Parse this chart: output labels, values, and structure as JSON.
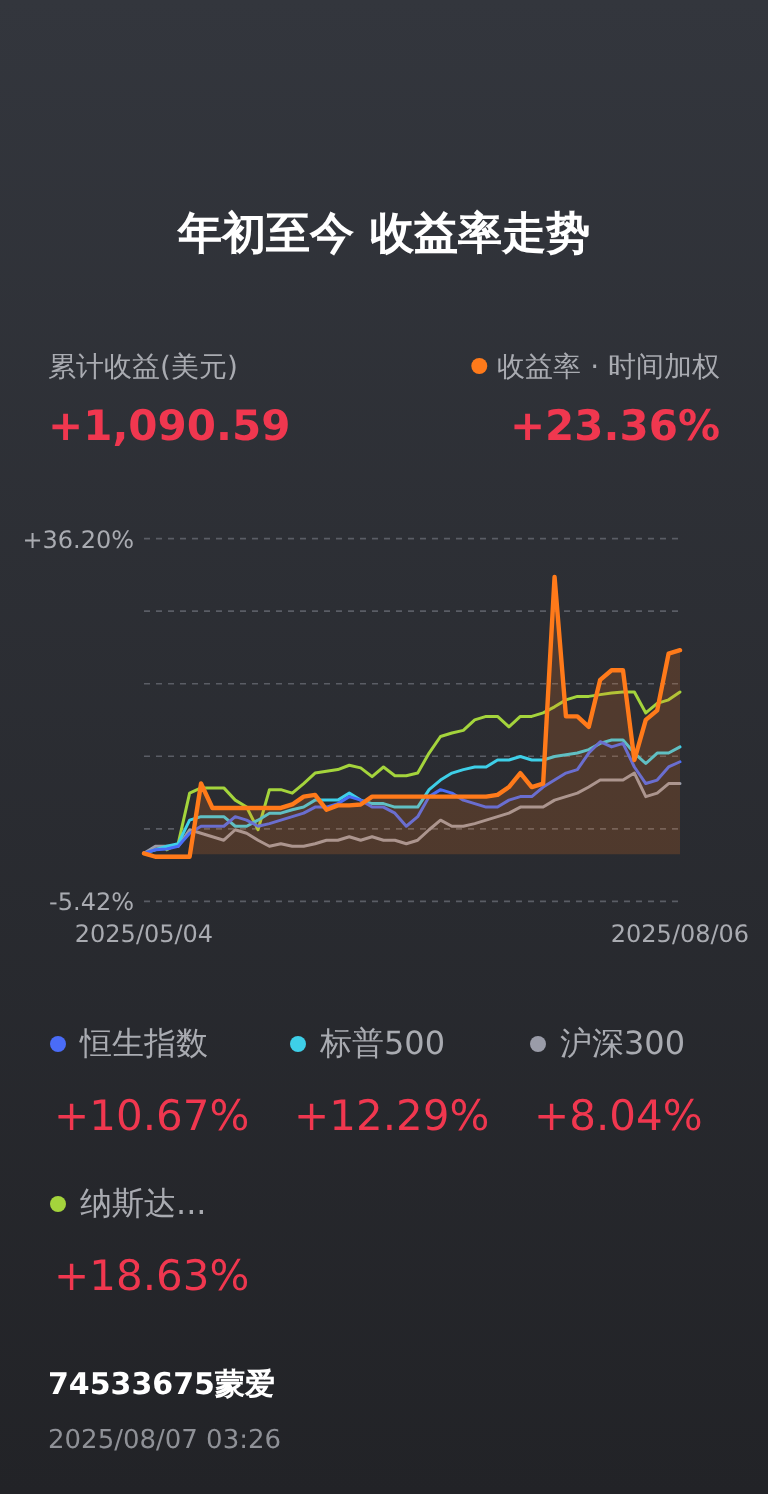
{
  "chart_data": {
    "type": "line",
    "title": "年初至今 收益率走势",
    "annotations": [
      "累计收益(美元)",
      "+1,090.59",
      "+23.36%",
      "+10.67%",
      "+12.29%",
      "+8.04%",
      "+18.63%",
      "74533675蒙爱",
      "2025/08/07 03:26"
    ],
    "x": [
      "2025-05-04",
      "2025-05-06",
      "2025-05-08",
      "2025-05-10",
      "2025-05-12",
      "2025-05-14",
      "2025-05-16",
      "2025-05-18",
      "2025-05-20",
      "2025-05-22",
      "2025-05-24",
      "2025-05-26",
      "2025-05-28",
      "2025-05-30",
      "2025-06-01",
      "2025-06-03",
      "2025-06-05",
      "2025-06-07",
      "2025-06-09",
      "2025-06-11",
      "2025-06-13",
      "2025-06-15",
      "2025-06-17",
      "2025-06-19",
      "2025-06-21",
      "2025-06-23",
      "2025-06-25",
      "2025-06-27",
      "2025-06-29",
      "2025-07-01",
      "2025-07-03",
      "2025-07-05",
      "2025-07-07",
      "2025-07-09",
      "2025-07-11",
      "2025-07-13",
      "2025-07-15",
      "2025-07-17",
      "2025-07-19",
      "2025-07-21",
      "2025-07-23",
      "2025-07-25",
      "2025-07-27",
      "2025-07-29",
      "2025-07-31",
      "2025-08-02",
      "2025-08-04",
      "2025-08-06"
    ],
    "series": [
      {
        "name": "收益率 · 时间加权",
        "type": "area",
        "color": "#ff7a1a",
        "values": [
          0.1,
          -0.3,
          -0.3,
          -0.3,
          -0.3,
          8.1,
          5.3,
          5.3,
          5.3,
          5.3,
          5.3,
          5.3,
          5.3,
          5.7,
          6.6,
          6.8,
          5.1,
          5.6,
          5.6,
          5.7,
          6.6,
          6.6,
          6.6,
          6.6,
          6.6,
          6.6,
          6.6,
          6.6,
          6.6,
          6.6,
          6.6,
          6.8,
          7.7,
          9.3,
          7.7,
          8.1,
          31.8,
          15.8,
          15.8,
          14.6,
          20.0,
          21.1,
          21.1,
          10.8,
          15.4,
          16.5,
          23.0,
          23.4
        ]
      },
      {
        "name": "恒生指数",
        "color": "#4a6cf7",
        "values": [
          0.1,
          0.5,
          0.6,
          0.9,
          2.4,
          3.2,
          3.2,
          3.2,
          4.3,
          3.9,
          3.2,
          3.5,
          3.9,
          4.3,
          4.7,
          5.4,
          5.4,
          5.8,
          6.6,
          6.2,
          5.4,
          5.4,
          4.7,
          3.2,
          4.3,
          6.6,
          7.4,
          7.0,
          6.2,
          5.8,
          5.4,
          5.4,
          6.2,
          6.6,
          6.6,
          7.7,
          8.5,
          9.3,
          9.7,
          11.6,
          12.9,
          12.3,
          12.7,
          10.0,
          8.1,
          8.5,
          10.0,
          10.6
        ]
      },
      {
        "name": "标普500",
        "color": "#3ecfe8",
        "values": [
          0.1,
          0.5,
          0.9,
          1.2,
          3.9,
          4.3,
          4.3,
          4.3,
          3.2,
          3.2,
          3.9,
          4.7,
          4.7,
          5.1,
          5.4,
          6.2,
          6.2,
          6.2,
          7.0,
          6.2,
          5.8,
          5.8,
          5.4,
          5.4,
          5.4,
          7.4,
          8.5,
          9.3,
          9.7,
          10.0,
          10.0,
          10.8,
          10.8,
          11.2,
          10.8,
          10.8,
          11.2,
          11.4,
          11.6,
          12.0,
          12.7,
          13.1,
          13.1,
          11.6,
          10.4,
          11.6,
          11.6,
          12.3
        ]
      },
      {
        "name": "沪深300",
        "color": "#9a9ca8",
        "values": [
          0.1,
          0.9,
          0.9,
          0.9,
          2.8,
          2.4,
          2.0,
          1.6,
          2.8,
          2.4,
          1.6,
          0.9,
          1.2,
          0.9,
          0.9,
          1.2,
          1.6,
          1.6,
          2.0,
          1.6,
          2.0,
          1.6,
          1.6,
          1.2,
          1.6,
          2.8,
          3.9,
          3.2,
          3.2,
          3.5,
          3.9,
          4.3,
          4.7,
          5.4,
          5.4,
          5.4,
          6.2,
          6.6,
          7.0,
          7.7,
          8.5,
          8.5,
          8.5,
          9.3,
          6.6,
          7.0,
          8.1,
          8.1
        ]
      },
      {
        "name": "纳斯达...",
        "color": "#a4d43c",
        "values": [
          null,
          null,
          0.5,
          1.2,
          7.0,
          7.6,
          7.6,
          7.6,
          6.2,
          5.4,
          2.8,
          7.4,
          7.4,
          7.0,
          8.1,
          9.3,
          9.5,
          9.7,
          10.2,
          9.9,
          8.9,
          10.0,
          9.0,
          9.0,
          9.3,
          11.6,
          13.5,
          13.9,
          14.2,
          15.4,
          15.8,
          15.8,
          14.6,
          15.8,
          15.8,
          16.2,
          16.9,
          17.7,
          18.1,
          18.1,
          18.3,
          18.5,
          18.6,
          18.6,
          16.2,
          17.3,
          17.7,
          18.6
        ]
      }
    ],
    "xlim": [
      "2025-05-04",
      "2025-08-06"
    ],
    "xticks": [
      {
        "value": "2025-05-04",
        "label": "2025/05/04"
      },
      {
        "value": "2025-08-06",
        "label": "2025/08/06"
      }
    ],
    "ylim": [
      -5.42,
      36.2
    ],
    "yticks": [
      {
        "value": 36.2,
        "label": "+36.20%"
      },
      {
        "value": 27.876,
        "label": null
      },
      {
        "value": 19.552,
        "label": null
      },
      {
        "value": 11.228,
        "label": null
      },
      {
        "value": 2.904,
        "label": null
      },
      {
        "value": -5.42,
        "label": "-5.42%"
      }
    ],
    "grid": "y",
    "legend": "bottom",
    "marker": "none",
    "line_style": "solid"
  }
}
